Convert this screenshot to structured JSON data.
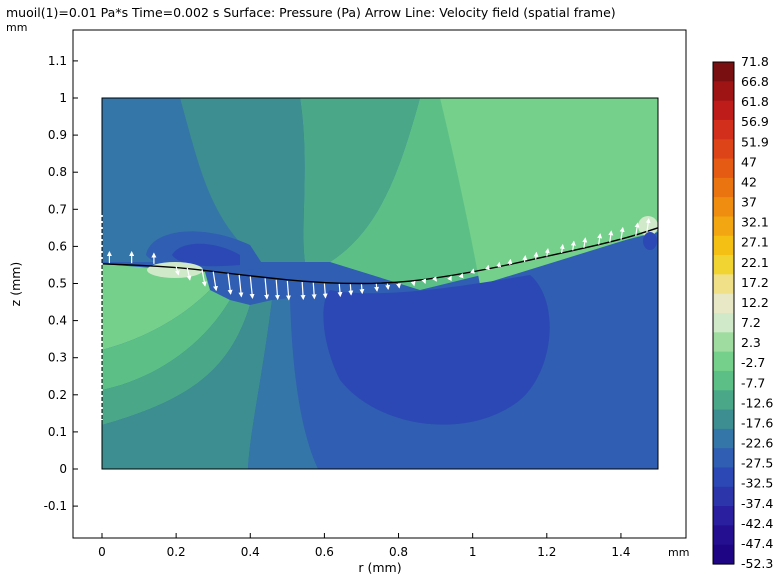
{
  "chart_data": {
    "type": "heatmap",
    "title": "muoil(1)=0.01 Pa*s Time=0.002 s  Surface: Pressure (Pa)  Arrow Line: Velocity field (spatial frame)",
    "xlabel": "r (mm)",
    "ylabel": "z (mm)",
    "x_unit": "mm",
    "y_unit": "mm",
    "xlim": [
      -0.08,
      1.65
    ],
    "ylim": [
      -0.2,
      1.2
    ],
    "domain": {
      "r": [
        0,
        1.5
      ],
      "z": [
        0,
        1
      ]
    },
    "x_ticks": [
      "0",
      "0.2",
      "0.4",
      "0.6",
      "0.8",
      "1",
      "1.2",
      "1.4"
    ],
    "y_ticks": [
      "-0.1",
      "0",
      "0.1",
      "0.2",
      "0.3",
      "0.4",
      "0.5",
      "0.6",
      "0.7",
      "0.8",
      "0.9",
      "1",
      "1.1"
    ],
    "colorbar": {
      "label": "Pressure (Pa)",
      "ticks": [
        "71.8",
        "66.8",
        "61.8",
        "56.9",
        "51.9",
        "47",
        "42",
        "37",
        "32.1",
        "27.1",
        "22.1",
        "17.2",
        "12.2",
        "7.2",
        "2.3",
        "-2.7",
        "-7.7",
        "-12.6",
        "-17.6",
        "-22.6",
        "-27.5",
        "-32.5",
        "-37.4",
        "-42.4",
        "-47.4",
        "-52.3"
      ],
      "colors": [
        "#7a0f12",
        "#9e1414",
        "#bd1c1a",
        "#d22f1c",
        "#dd4418",
        "#e55b13",
        "#ea7510",
        "#ef8d10",
        "#f2a712",
        "#f4c013",
        "#f1d431",
        "#f0e088",
        "#e8e8c6",
        "#cfe9c9",
        "#9fdca0",
        "#74d08a",
        "#5cc086",
        "#4aa888",
        "#3d8e91",
        "#3576a8",
        "#2f5eb2",
        "#2c48b4",
        "#2c36aa",
        "#291f9f",
        "#240f90",
        "#1e0583"
      ]
    },
    "interface": [
      [
        0,
        0.553
      ],
      [
        0.2,
        0.545
      ],
      [
        0.4,
        0.52
      ],
      [
        0.6,
        0.5
      ],
      [
        0.8,
        0.5
      ],
      [
        1.0,
        0.53
      ],
      [
        1.2,
        0.573
      ],
      [
        1.4,
        0.618
      ],
      [
        1.5,
        0.65
      ]
    ],
    "arrows": [
      [
        0.02,
        0.555,
        0.0,
        0.03
      ],
      [
        0.08,
        0.555,
        0.0,
        0.03
      ],
      [
        0.14,
        0.553,
        0.0,
        0.028
      ],
      [
        0.2,
        0.546,
        0.006,
        -0.022
      ],
      [
        0.23,
        0.542,
        0.007,
        -0.032
      ],
      [
        0.27,
        0.537,
        0.008,
        -0.043
      ],
      [
        0.3,
        0.532,
        0.008,
        -0.05
      ],
      [
        0.34,
        0.527,
        0.007,
        -0.055
      ],
      [
        0.37,
        0.523,
        0.006,
        -0.058
      ],
      [
        0.4,
        0.519,
        0.006,
        -0.058
      ],
      [
        0.44,
        0.514,
        0.005,
        -0.055
      ],
      [
        0.47,
        0.51,
        0.004,
        -0.052
      ],
      [
        0.5,
        0.507,
        0.004,
        -0.05
      ],
      [
        0.54,
        0.504,
        0.003,
        -0.046
      ],
      [
        0.57,
        0.502,
        0.003,
        -0.042
      ],
      [
        0.6,
        0.5,
        0.003,
        -0.038
      ],
      [
        0.64,
        0.499,
        0.003,
        -0.033
      ],
      [
        0.67,
        0.498,
        0.002,
        -0.028
      ],
      [
        0.7,
        0.498,
        0.002,
        -0.024
      ],
      [
        0.74,
        0.499,
        0.002,
        -0.019
      ],
      [
        0.77,
        0.5,
        0.002,
        -0.015
      ],
      [
        0.8,
        0.5,
        0.002,
        -0.011
      ],
      [
        0.84,
        0.503,
        0.002,
        -0.008
      ],
      [
        0.87,
        0.506,
        0.002,
        -0.005
      ],
      [
        0.9,
        0.51,
        0.002,
        -0.003
      ],
      [
        0.94,
        0.515,
        0.002,
        0.004
      ],
      [
        0.97,
        0.52,
        0.002,
        0.006
      ],
      [
        1.0,
        0.53,
        0.002,
        0.008
      ],
      [
        1.04,
        0.538,
        0.002,
        0.01
      ],
      [
        1.07,
        0.544,
        0.002,
        0.012
      ],
      [
        1.1,
        0.55,
        0.002,
        0.014
      ],
      [
        1.14,
        0.558,
        0.002,
        0.016
      ],
      [
        1.17,
        0.565,
        0.002,
        0.018
      ],
      [
        1.2,
        0.573,
        0.003,
        0.02
      ],
      [
        1.24,
        0.582,
        0.003,
        0.022
      ],
      [
        1.27,
        0.589,
        0.003,
        0.024
      ],
      [
        1.3,
        0.596,
        0.004,
        0.026
      ],
      [
        1.34,
        0.605,
        0.004,
        0.028
      ],
      [
        1.37,
        0.611,
        0.004,
        0.03
      ],
      [
        1.4,
        0.618,
        0.005,
        0.032
      ],
      [
        1.44,
        0.628,
        0.005,
        0.034
      ],
      [
        1.47,
        0.638,
        0.005,
        0.036
      ]
    ],
    "grid": false,
    "legend": "right"
  }
}
